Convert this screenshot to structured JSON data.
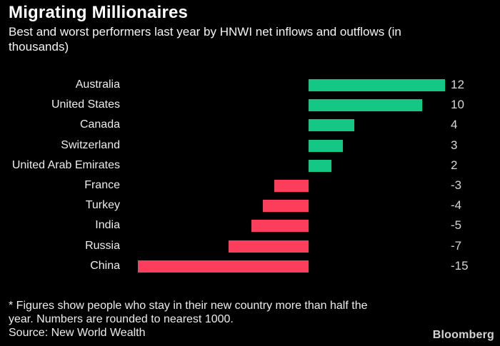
{
  "header": {
    "title": "Migrating Millionaires",
    "subtitle_lines": [
      "Best and worst performers last year by HNWI net inflows and outflows (in",
      "thousands)"
    ]
  },
  "chart_data": {
    "type": "bar",
    "orientation": "horizontal",
    "title": "Migrating Millionaires",
    "subtitle": "Best and worst performers last year by HNWI net inflows and outflows (in thousands)",
    "categories": [
      "Australia",
      "United States",
      "Canada",
      "Switzerland",
      "United Arab Emirates",
      "France",
      "Turkey",
      "India",
      "Russia",
      "China"
    ],
    "values": [
      12,
      10,
      4,
      3,
      2,
      -3,
      -4,
      -5,
      -7,
      -15
    ],
    "value_labels": [
      "12",
      "10",
      "4",
      "3",
      "2",
      "-3",
      "-4",
      "-5",
      "-7",
      "-15"
    ],
    "unit": "thousands",
    "xlabel": "",
    "ylabel": "",
    "xlim": [
      -15,
      12
    ],
    "grid": false,
    "legend": false,
    "positive_color": "#15c784",
    "negative_color": "#fc3d5c",
    "background_color": "#000000"
  },
  "footer": {
    "footnote_lines": [
      "* Figures show people who stay in their new country more than half the",
      "year. Numbers are rounded to nearest 1000."
    ],
    "source": "Source: New World Wealth",
    "brand": "Bloomberg"
  }
}
